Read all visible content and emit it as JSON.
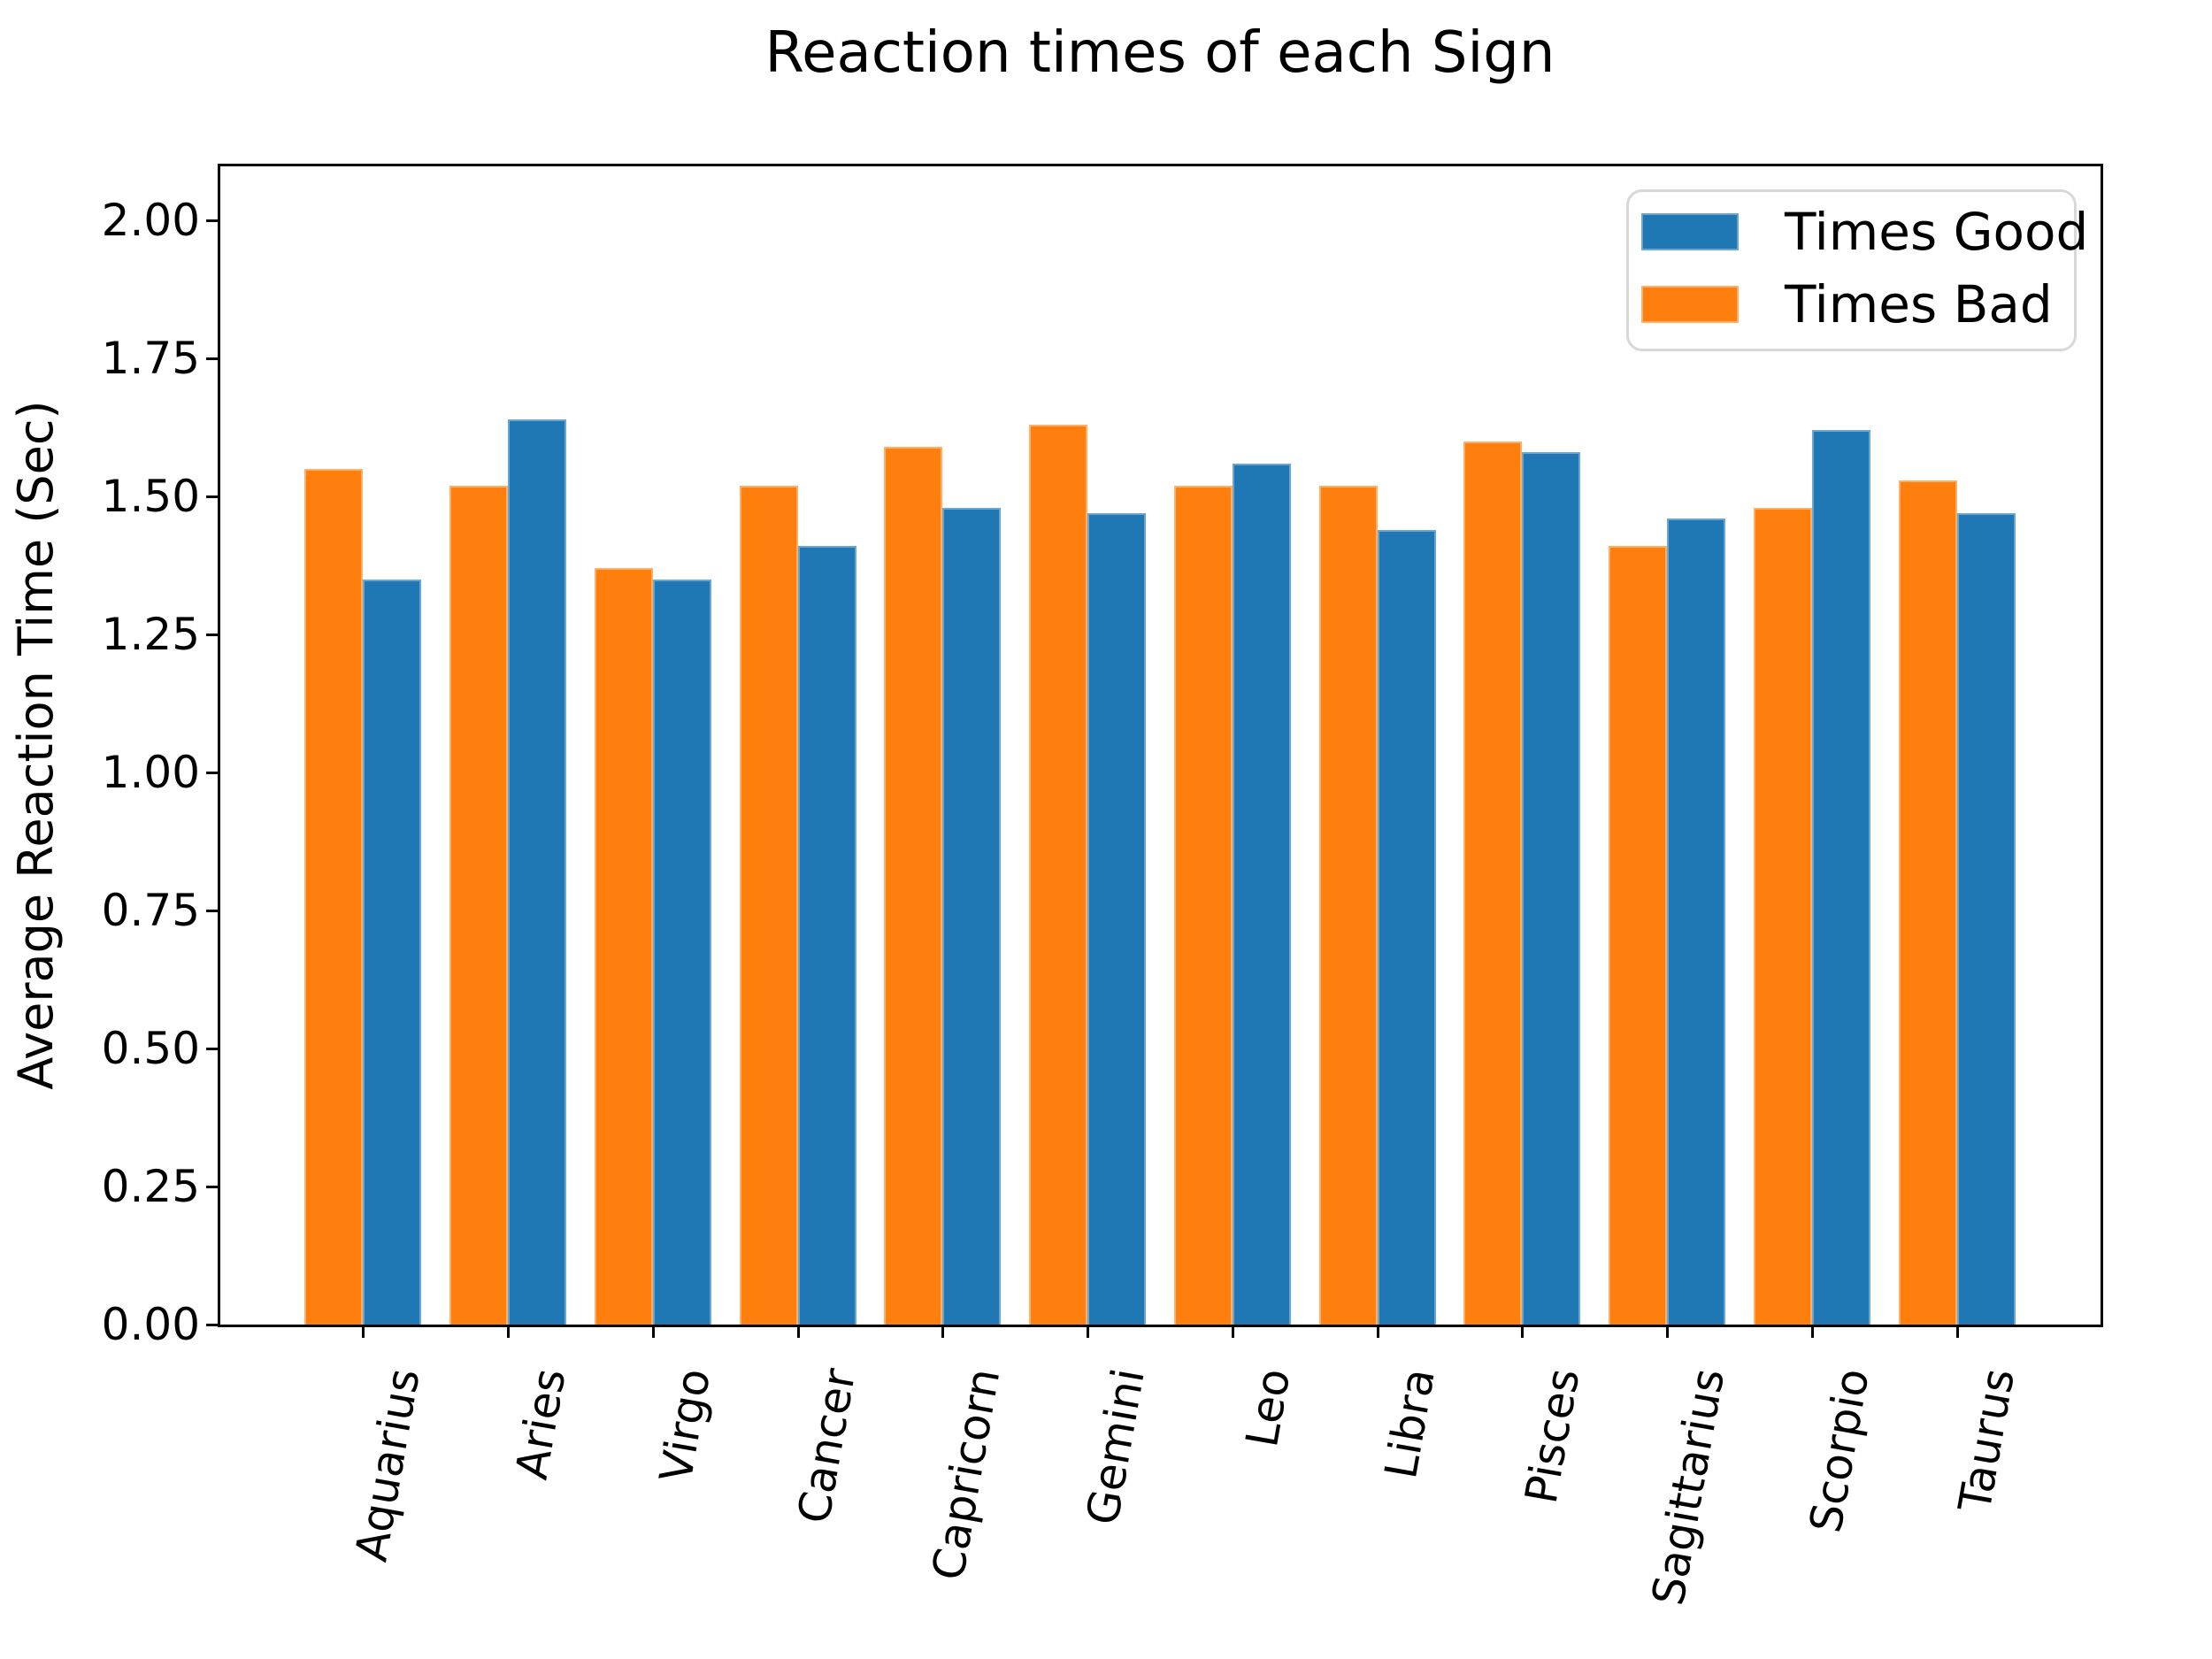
{
  "figure": {
    "title": "Reaction times of each Sign",
    "ylabel": "Average Reaction Time (Sec)"
  },
  "legend": {
    "items": [
      {
        "label": "Times Good",
        "color": "#1f77b4",
        "edge_color": "#6aa6d0"
      },
      {
        "label": "Times Bad",
        "color": "#ff7f0e",
        "edge_color": "#ffb066"
      }
    ]
  },
  "chart_data": {
    "type": "bar",
    "title": "Reaction times of each Sign",
    "xlabel": "",
    "ylabel": "Average Reaction Time (Sec)",
    "categories": [
      "Aquarius",
      "Aries",
      "Virgo",
      "Cancer",
      "Capricorn",
      "Gemini",
      "Leo",
      "Libra",
      "Pisces",
      "Sagittarius",
      "Scorpio",
      "Taurus"
    ],
    "series": [
      {
        "name": "Times Bad",
        "position": "left",
        "color": "#ff7f0e",
        "edge_color": "#ffb066",
        "values": [
          1.55,
          1.52,
          1.37,
          1.52,
          1.59,
          1.63,
          1.52,
          1.52,
          1.6,
          1.41,
          1.48,
          1.53
        ]
      },
      {
        "name": "Times Good",
        "position": "right",
        "color": "#1f77b4",
        "edge_color": "#6aa6d0",
        "values": [
          1.35,
          1.64,
          1.35,
          1.41,
          1.48,
          1.47,
          1.56,
          1.44,
          1.58,
          1.46,
          1.62,
          1.47
        ]
      }
    ],
    "ylim": [
      0,
      2.1
    ],
    "yticks": [
      0,
      0.25,
      0.5,
      0.75,
      1.0,
      1.25,
      1.5,
      1.75,
      2.0
    ],
    "ytick_labels": [
      "0.00",
      "0.25",
      "0.50",
      "0.75",
      "1.00",
      "1.25",
      "1.50",
      "1.75",
      "2.00"
    ],
    "bar_width_fraction": 0.4,
    "grid": false,
    "legend_position": "upper right",
    "legend_order": [
      "Times Good",
      "Times Bad"
    ],
    "xtick_rotation_deg": 80
  }
}
